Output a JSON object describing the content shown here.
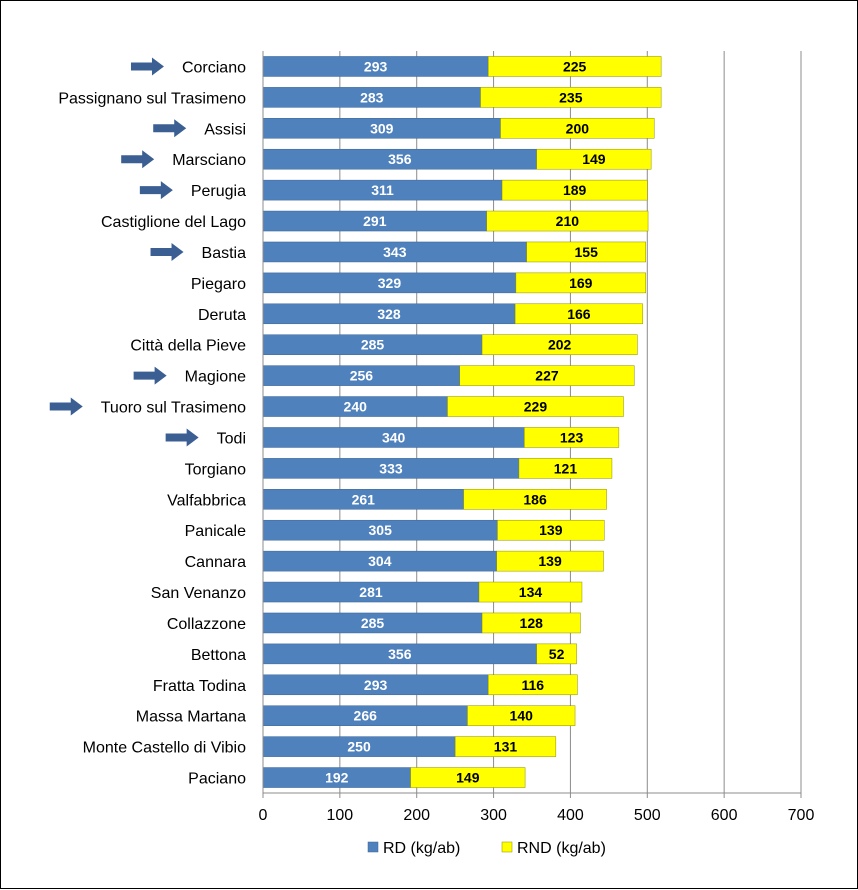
{
  "chart_data": {
    "type": "bar",
    "orientation": "horizontal",
    "stacked": true,
    "categories": [
      "Corciano",
      "Passignano sul Trasimeno",
      "Assisi",
      "Marsciano",
      "Perugia",
      "Castiglione del Lago",
      "Bastia",
      "Piegaro",
      "Deruta",
      "Città della Pieve",
      "Magione",
      "Tuoro sul Trasimeno",
      "Todi",
      "Torgiano",
      "Valfabbrica",
      "Panicale",
      "Cannara",
      "San Venanzo",
      "Collazzone",
      "Bettona",
      "Fratta Todina",
      "Massa Martana",
      "Monte Castello di Vibio",
      "Paciano"
    ],
    "series": [
      {
        "name": "RD (kg/ab)",
        "color": "#4F81BD",
        "values": [
          293,
          283,
          309,
          356,
          311,
          291,
          343,
          329,
          328,
          285,
          256,
          240,
          340,
          333,
          261,
          305,
          304,
          281,
          285,
          356,
          293,
          266,
          250,
          192
        ]
      },
      {
        "name": "RND (kg/ab)",
        "color": "#FFFF00",
        "values": [
          225,
          235,
          200,
          149,
          189,
          210,
          155,
          169,
          166,
          202,
          227,
          229,
          123,
          121,
          186,
          139,
          139,
          134,
          128,
          52,
          116,
          140,
          131,
          149
        ]
      }
    ],
    "highlighted_categories": [
      "Corciano",
      "Assisi",
      "Marsciano",
      "Perugia",
      "Bastia",
      "Magione",
      "Tuoro sul Trasimeno",
      "Todi"
    ],
    "xlim": [
      0,
      700
    ],
    "xticks": [
      0,
      100,
      200,
      300,
      400,
      500,
      600,
      700
    ],
    "grid": true,
    "legend_position": "bottom",
    "arrow_color": "#3B5F93"
  }
}
